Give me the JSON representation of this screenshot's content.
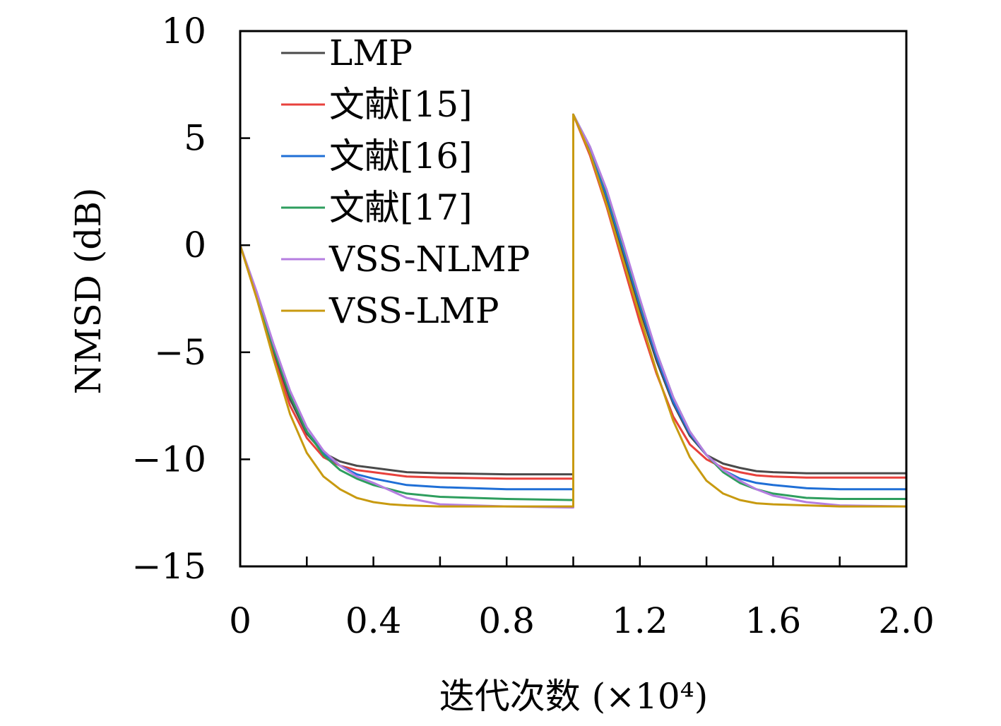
{
  "chart_data": {
    "type": "line",
    "xlabel": "迭代次数 (×10⁴)",
    "ylabel": "NMSD (dB)",
    "xlim": [
      0,
      2.0
    ],
    "ylim": [
      -15,
      10
    ],
    "x_ticks": [
      0,
      0.2,
      0.4,
      0.6,
      0.8,
      1.0,
      1.2,
      1.4,
      1.6,
      1.8,
      2.0
    ],
    "x_tick_labels": [
      "0",
      "",
      "0.4",
      "",
      "0.8",
      "",
      "1.2",
      "",
      "1.6",
      "",
      "2.0"
    ],
    "y_ticks": [
      -15,
      -10,
      -5,
      0,
      5,
      10
    ],
    "y_tick_labels": [
      "−15",
      "−10",
      "−5",
      "0",
      "5",
      "10"
    ],
    "grid": false,
    "legend_position": "top-left",
    "series": [
      {
        "name": "LMP",
        "color": "#4a4a4a",
        "x": [
          0,
          0.05,
          0.1,
          0.15,
          0.2,
          0.25,
          0.3,
          0.35,
          0.4,
          0.5,
          0.6,
          0.8,
          0.99,
          1.0,
          1.0,
          1.05,
          1.1,
          1.15,
          1.2,
          1.25,
          1.3,
          1.35,
          1.4,
          1.45,
          1.5,
          1.55,
          1.6,
          1.7,
          1.8,
          2.0
        ],
        "y": [
          0,
          -2.4,
          -5.0,
          -7.2,
          -8.8,
          -9.7,
          -10.1,
          -10.3,
          -10.4,
          -10.6,
          -10.65,
          -10.7,
          -10.7,
          -10.7,
          6.1,
          4.3,
          2.0,
          -0.5,
          -3.0,
          -5.4,
          -7.4,
          -8.9,
          -9.8,
          -10.2,
          -10.4,
          -10.55,
          -10.6,
          -10.65,
          -10.65,
          -10.65
        ]
      },
      {
        "name": "文献[15]",
        "color": "#e8413c",
        "x": [
          0,
          0.05,
          0.1,
          0.15,
          0.2,
          0.25,
          0.3,
          0.35,
          0.4,
          0.5,
          0.6,
          0.8,
          0.99,
          1.0,
          1.0,
          1.05,
          1.1,
          1.15,
          1.2,
          1.25,
          1.3,
          1.35,
          1.4,
          1.45,
          1.5,
          1.55,
          1.6,
          1.7,
          1.8,
          2.0
        ],
        "y": [
          0,
          -2.5,
          -5.2,
          -7.5,
          -9.0,
          -9.9,
          -10.3,
          -10.5,
          -10.6,
          -10.8,
          -10.85,
          -10.9,
          -10.9,
          -10.9,
          6.1,
          4.2,
          1.8,
          -0.9,
          -3.6,
          -6.0,
          -8.0,
          -9.3,
          -10.0,
          -10.4,
          -10.6,
          -10.75,
          -10.8,
          -10.85,
          -10.85,
          -10.85
        ]
      },
      {
        "name": "文献[16]",
        "color": "#1f6fd6",
        "x": [
          0,
          0.05,
          0.1,
          0.15,
          0.2,
          0.25,
          0.3,
          0.35,
          0.4,
          0.5,
          0.6,
          0.8,
          0.99,
          1.0,
          1.0,
          1.05,
          1.1,
          1.15,
          1.2,
          1.25,
          1.3,
          1.35,
          1.4,
          1.45,
          1.5,
          1.55,
          1.6,
          1.7,
          1.8,
          2.0
        ],
        "y": [
          0,
          -2.3,
          -4.8,
          -7.0,
          -8.7,
          -9.7,
          -10.3,
          -10.7,
          -10.9,
          -11.2,
          -11.3,
          -11.4,
          -11.4,
          -11.4,
          6.1,
          4.5,
          2.3,
          -0.2,
          -2.8,
          -5.2,
          -7.3,
          -8.8,
          -9.8,
          -10.5,
          -10.9,
          -11.1,
          -11.2,
          -11.35,
          -11.4,
          -11.4
        ]
      },
      {
        "name": "文献[17]",
        "color": "#2e9e5e",
        "x": [
          0,
          0.05,
          0.1,
          0.15,
          0.2,
          0.25,
          0.3,
          0.35,
          0.4,
          0.5,
          0.6,
          0.8,
          0.99,
          1.0,
          1.0,
          1.05,
          1.1,
          1.15,
          1.2,
          1.25,
          1.3,
          1.35,
          1.4,
          1.45,
          1.5,
          1.55,
          1.6,
          1.7,
          1.8,
          2.0
        ],
        "y": [
          0,
          -2.3,
          -4.8,
          -7.0,
          -8.7,
          -9.8,
          -10.5,
          -10.9,
          -11.2,
          -11.6,
          -11.75,
          -11.85,
          -11.9,
          -11.9,
          6.1,
          4.6,
          2.5,
          0.0,
          -2.6,
          -5.0,
          -7.1,
          -8.7,
          -9.8,
          -10.6,
          -11.1,
          -11.4,
          -11.6,
          -11.8,
          -11.85,
          -11.85
        ]
      },
      {
        "name": "VSS-NLMP",
        "color": "#b57ee0",
        "x": [
          0,
          0.05,
          0.1,
          0.15,
          0.2,
          0.25,
          0.3,
          0.35,
          0.4,
          0.5,
          0.6,
          0.8,
          0.99,
          1.0,
          1.0,
          1.05,
          1.1,
          1.15,
          1.2,
          1.25,
          1.3,
          1.35,
          1.4,
          1.45,
          1.5,
          1.55,
          1.6,
          1.7,
          1.8,
          2.0
        ],
        "y": [
          0,
          -2.2,
          -4.6,
          -6.8,
          -8.5,
          -9.6,
          -10.3,
          -10.8,
          -11.1,
          -11.8,
          -12.1,
          -12.2,
          -12.25,
          -12.25,
          6.1,
          4.6,
          2.6,
          0.1,
          -2.5,
          -5.0,
          -7.1,
          -8.7,
          -9.8,
          -10.5,
          -11.0,
          -11.4,
          -11.7,
          -12.0,
          -12.15,
          -12.2
        ]
      },
      {
        "name": "VSS-LMP",
        "color": "#c89a10",
        "x": [
          0,
          0.05,
          0.1,
          0.15,
          0.2,
          0.25,
          0.3,
          0.35,
          0.4,
          0.45,
          0.5,
          0.6,
          0.8,
          0.99,
          1.0,
          1.0,
          1.05,
          1.1,
          1.15,
          1.2,
          1.25,
          1.3,
          1.35,
          1.4,
          1.45,
          1.5,
          1.55,
          1.6,
          1.7,
          1.8,
          2.0
        ],
        "y": [
          0,
          -2.5,
          -5.3,
          -7.9,
          -9.7,
          -10.8,
          -11.4,
          -11.8,
          -12.0,
          -12.1,
          -12.15,
          -12.2,
          -12.2,
          -12.2,
          -12.2,
          6.1,
          4.3,
          1.9,
          -0.7,
          -3.3,
          -5.9,
          -8.2,
          -9.9,
          -11.0,
          -11.6,
          -11.9,
          -12.05,
          -12.1,
          -12.15,
          -12.2,
          -12.2
        ]
      }
    ]
  }
}
